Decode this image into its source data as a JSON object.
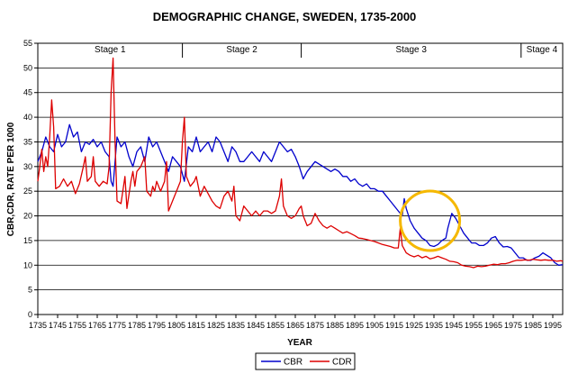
{
  "chart_data": {
    "type": "line",
    "title": "DEMOGRAPHIC CHANGE, SWEDEN, 1735-2000",
    "xlabel": "YEAR",
    "ylabel": "CBR,CDR, RATE PER 1000",
    "xlim": [
      1735,
      2000
    ],
    "ylim": [
      0,
      55
    ],
    "y_ticks": [
      0,
      5,
      10,
      15,
      20,
      25,
      30,
      35,
      40,
      45,
      50,
      55
    ],
    "x_ticks": [
      1735,
      1745,
      1755,
      1765,
      1775,
      1785,
      1795,
      1805,
      1815,
      1825,
      1835,
      1845,
      1855,
      1865,
      1875,
      1885,
      1895,
      1905,
      1915,
      1925,
      1935,
      1945,
      1955,
      1965,
      1975,
      1985,
      1995
    ],
    "grid": "horizontal",
    "legend_position": "bottom",
    "stages": [
      {
        "label": "Stage 1",
        "start": 1735,
        "end": 1808
      },
      {
        "label": "Stage 2",
        "start": 1808,
        "end": 1868
      },
      {
        "label": "Stage 3",
        "start": 1868,
        "end": 1979
      },
      {
        "label": "Stage 4",
        "start": 1979,
        "end": 2000
      }
    ],
    "annotation_circle": {
      "cx": 1933,
      "cy": 19
    },
    "series": [
      {
        "name": "CBR",
        "color": "#0000cc",
        "points": [
          [
            1735,
            31
          ],
          [
            1737,
            33
          ],
          [
            1739,
            36
          ],
          [
            1741,
            34
          ],
          [
            1743,
            33
          ],
          [
            1745,
            36.5
          ],
          [
            1747,
            34
          ],
          [
            1749,
            35
          ],
          [
            1751,
            38.5
          ],
          [
            1753,
            36
          ],
          [
            1755,
            37
          ],
          [
            1757,
            33
          ],
          [
            1759,
            35
          ],
          [
            1761,
            34.5
          ],
          [
            1763,
            35.5
          ],
          [
            1765,
            34
          ],
          [
            1767,
            35
          ],
          [
            1769,
            33
          ],
          [
            1771,
            32
          ],
          [
            1772,
            27
          ],
          [
            1773,
            26
          ],
          [
            1775,
            36
          ],
          [
            1777,
            34
          ],
          [
            1779,
            35
          ],
          [
            1781,
            32
          ],
          [
            1783,
            30
          ],
          [
            1785,
            33
          ],
          [
            1787,
            34
          ],
          [
            1789,
            31
          ],
          [
            1791,
            36
          ],
          [
            1793,
            34
          ],
          [
            1795,
            35
          ],
          [
            1797,
            33
          ],
          [
            1799,
            31
          ],
          [
            1801,
            29
          ],
          [
            1803,
            32
          ],
          [
            1805,
            31
          ],
          [
            1807,
            30
          ],
          [
            1809,
            27
          ],
          [
            1811,
            34
          ],
          [
            1813,
            33
          ],
          [
            1815,
            36
          ],
          [
            1817,
            33
          ],
          [
            1819,
            34
          ],
          [
            1821,
            35
          ],
          [
            1823,
            33
          ],
          [
            1825,
            36
          ],
          [
            1827,
            35
          ],
          [
            1829,
            33
          ],
          [
            1831,
            31
          ],
          [
            1833,
            34
          ],
          [
            1835,
            33
          ],
          [
            1837,
            31
          ],
          [
            1839,
            31
          ],
          [
            1841,
            32
          ],
          [
            1843,
            33
          ],
          [
            1845,
            32
          ],
          [
            1847,
            31
          ],
          [
            1849,
            33
          ],
          [
            1851,
            32
          ],
          [
            1853,
            31
          ],
          [
            1855,
            33
          ],
          [
            1857,
            35
          ],
          [
            1859,
            34
          ],
          [
            1861,
            33
          ],
          [
            1863,
            33.5
          ],
          [
            1865,
            32
          ],
          [
            1867,
            30
          ],
          [
            1869,
            27.5
          ],
          [
            1871,
            29
          ],
          [
            1873,
            30
          ],
          [
            1875,
            31
          ],
          [
            1877,
            30.5
          ],
          [
            1879,
            30
          ],
          [
            1881,
            29.5
          ],
          [
            1883,
            29
          ],
          [
            1885,
            29.5
          ],
          [
            1887,
            29
          ],
          [
            1889,
            28
          ],
          [
            1891,
            28
          ],
          [
            1893,
            27
          ],
          [
            1895,
            27.5
          ],
          [
            1897,
            26.5
          ],
          [
            1899,
            26
          ],
          [
            1901,
            26.5
          ],
          [
            1903,
            25.5
          ],
          [
            1905,
            25.5
          ],
          [
            1907,
            25
          ],
          [
            1909,
            25
          ],
          [
            1911,
            24
          ],
          [
            1913,
            23
          ],
          [
            1915,
            22
          ],
          [
            1917,
            21
          ],
          [
            1919,
            20
          ],
          [
            1920,
            23.5
          ],
          [
            1921,
            21.5
          ],
          [
            1923,
            19
          ],
          [
            1925,
            17.5
          ],
          [
            1927,
            16.5
          ],
          [
            1929,
            15.5
          ],
          [
            1931,
            15
          ],
          [
            1933,
            14
          ],
          [
            1935,
            13.8
          ],
          [
            1937,
            14.2
          ],
          [
            1939,
            15
          ],
          [
            1941,
            15.5
          ],
          [
            1942,
            17.5
          ],
          [
            1943,
            19
          ],
          [
            1944,
            20.5
          ],
          [
            1946,
            19.5
          ],
          [
            1948,
            18
          ],
          [
            1950,
            16.5
          ],
          [
            1952,
            15.5
          ],
          [
            1954,
            14.5
          ],
          [
            1956,
            14.5
          ],
          [
            1958,
            14
          ],
          [
            1960,
            14
          ],
          [
            1962,
            14.5
          ],
          [
            1964,
            15.5
          ],
          [
            1966,
            15.8
          ],
          [
            1968,
            14.5
          ],
          [
            1970,
            13.7
          ],
          [
            1972,
            13.8
          ],
          [
            1974,
            13.5
          ],
          [
            1976,
            12.5
          ],
          [
            1978,
            11.5
          ],
          [
            1980,
            11.5
          ],
          [
            1982,
            11
          ],
          [
            1984,
            11
          ],
          [
            1986,
            11.5
          ],
          [
            1988,
            11.8
          ],
          [
            1990,
            12.5
          ],
          [
            1992,
            12
          ],
          [
            1994,
            11.5
          ],
          [
            1996,
            10.5
          ],
          [
            1998,
            10
          ],
          [
            2000,
            10.1
          ]
        ]
      },
      {
        "name": "CDR",
        "color": "#dd0000",
        "points": [
          [
            1735,
            27
          ],
          [
            1736,
            30
          ],
          [
            1737,
            33.5
          ],
          [
            1738,
            29
          ],
          [
            1739,
            32
          ],
          [
            1740,
            30
          ],
          [
            1741,
            36
          ],
          [
            1742,
            43.5
          ],
          [
            1743,
            38
          ],
          [
            1744,
            25.5
          ],
          [
            1746,
            26
          ],
          [
            1748,
            27.5
          ],
          [
            1750,
            26
          ],
          [
            1752,
            27
          ],
          [
            1754,
            24.5
          ],
          [
            1756,
            26.5
          ],
          [
            1758,
            30
          ],
          [
            1759,
            32
          ],
          [
            1760,
            27
          ],
          [
            1762,
            28
          ],
          [
            1763,
            32
          ],
          [
            1764,
            27
          ],
          [
            1766,
            26
          ],
          [
            1768,
            27
          ],
          [
            1770,
            26.5
          ],
          [
            1771,
            30
          ],
          [
            1772,
            45
          ],
          [
            1773,
            52
          ],
          [
            1774,
            35
          ],
          [
            1775,
            23
          ],
          [
            1777,
            22.5
          ],
          [
            1779,
            28
          ],
          [
            1780,
            21.5
          ],
          [
            1782,
            27
          ],
          [
            1783,
            29
          ],
          [
            1784,
            26
          ],
          [
            1785,
            29
          ],
          [
            1787,
            30
          ],
          [
            1789,
            32
          ],
          [
            1790,
            25
          ],
          [
            1792,
            24
          ],
          [
            1793,
            26
          ],
          [
            1794,
            25
          ],
          [
            1795,
            27
          ],
          [
            1797,
            25
          ],
          [
            1799,
            27
          ],
          [
            1800,
            31
          ],
          [
            1801,
            21
          ],
          [
            1803,
            23
          ],
          [
            1805,
            25
          ],
          [
            1806,
            26
          ],
          [
            1807,
            27
          ],
          [
            1808,
            35
          ],
          [
            1809,
            40
          ],
          [
            1810,
            28
          ],
          [
            1812,
            26
          ],
          [
            1814,
            27
          ],
          [
            1815,
            28
          ],
          [
            1817,
            24
          ],
          [
            1819,
            26
          ],
          [
            1821,
            24.5
          ],
          [
            1823,
            23
          ],
          [
            1825,
            22
          ],
          [
            1827,
            21.5
          ],
          [
            1829,
            24
          ],
          [
            1831,
            25
          ],
          [
            1833,
            23
          ],
          [
            1834,
            26
          ],
          [
            1835,
            20
          ],
          [
            1837,
            19
          ],
          [
            1839,
            22
          ],
          [
            1841,
            21
          ],
          [
            1843,
            20
          ],
          [
            1845,
            21
          ],
          [
            1847,
            20
          ],
          [
            1849,
            21
          ],
          [
            1851,
            21
          ],
          [
            1853,
            20.5
          ],
          [
            1855,
            21
          ],
          [
            1857,
            24
          ],
          [
            1858,
            27.5
          ],
          [
            1859,
            22
          ],
          [
            1861,
            20
          ],
          [
            1863,
            19.5
          ],
          [
            1865,
            20
          ],
          [
            1867,
            21.5
          ],
          [
            1868,
            22
          ],
          [
            1869,
            20
          ],
          [
            1871,
            18
          ],
          [
            1873,
            18.5
          ],
          [
            1875,
            20.5
          ],
          [
            1877,
            19
          ],
          [
            1879,
            18
          ],
          [
            1881,
            17.5
          ],
          [
            1883,
            18
          ],
          [
            1885,
            17.5
          ],
          [
            1887,
            17
          ],
          [
            1889,
            16.5
          ],
          [
            1891,
            16.8
          ],
          [
            1893,
            16.4
          ],
          [
            1895,
            16
          ],
          [
            1897,
            15.5
          ],
          [
            1899,
            15.4
          ],
          [
            1901,
            15.2
          ],
          [
            1903,
            15
          ],
          [
            1905,
            14.8
          ],
          [
            1907,
            14.5
          ],
          [
            1909,
            14.2
          ],
          [
            1911,
            14
          ],
          [
            1913,
            13.8
          ],
          [
            1915,
            13.5
          ],
          [
            1917,
            13.5
          ],
          [
            1918,
            17.5
          ],
          [
            1919,
            14
          ],
          [
            1921,
            12.5
          ],
          [
            1923,
            12
          ],
          [
            1925,
            11.7
          ],
          [
            1927,
            12
          ],
          [
            1929,
            11.5
          ],
          [
            1931,
            11.8
          ],
          [
            1933,
            11.3
          ],
          [
            1935,
            11.5
          ],
          [
            1937,
            11.8
          ],
          [
            1939,
            11.5
          ],
          [
            1941,
            11.2
          ],
          [
            1943,
            10.8
          ],
          [
            1945,
            10.7
          ],
          [
            1947,
            10.5
          ],
          [
            1949,
            10
          ],
          [
            1951,
            9.8
          ],
          [
            1953,
            9.7
          ],
          [
            1955,
            9.5
          ],
          [
            1957,
            9.8
          ],
          [
            1959,
            9.7
          ],
          [
            1961,
            9.8
          ],
          [
            1963,
            10
          ],
          [
            1965,
            10.2
          ],
          [
            1967,
            10.1
          ],
          [
            1969,
            10.3
          ],
          [
            1971,
            10.3
          ],
          [
            1973,
            10.5
          ],
          [
            1975,
            10.8
          ],
          [
            1977,
            11
          ],
          [
            1979,
            11
          ],
          [
            1981,
            11.1
          ],
          [
            1983,
            11
          ],
          [
            1985,
            11.2
          ],
          [
            1987,
            11.1
          ],
          [
            1989,
            11
          ],
          [
            1991,
            11.1
          ],
          [
            1993,
            11
          ],
          [
            1995,
            11
          ],
          [
            1997,
            10.8
          ],
          [
            1999,
            10.9
          ],
          [
            2000,
            10.8
          ]
        ]
      }
    ]
  }
}
